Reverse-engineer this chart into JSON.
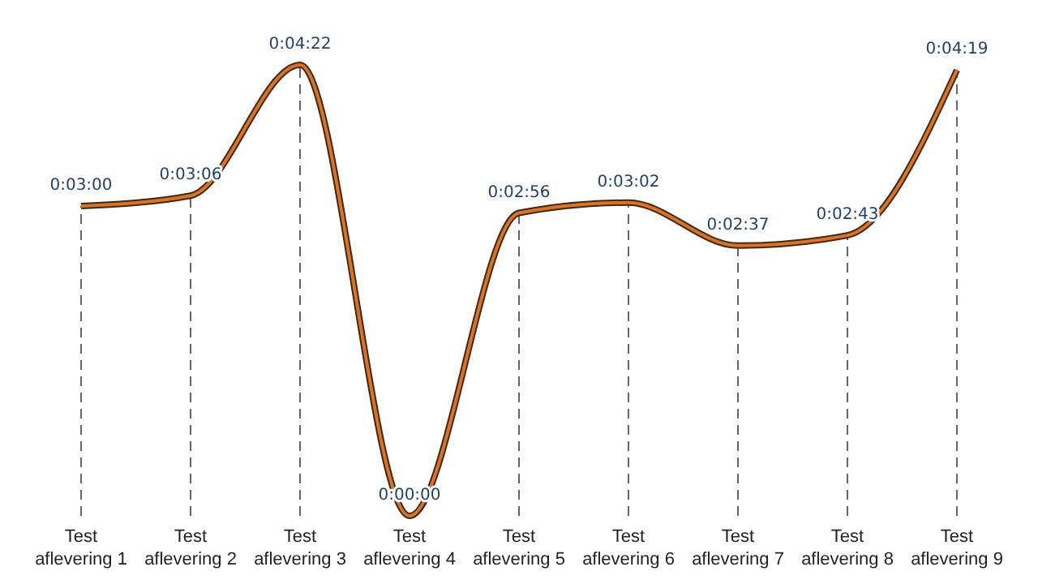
{
  "chart_data": {
    "type": "line",
    "categories": [
      "Test aflevering 1",
      "Test aflevering 2",
      "Test aflevering 3",
      "Test aflevering 4",
      "Test aflevering 5",
      "Test aflevering 6",
      "Test aflevering 7",
      "Test aflevering 8",
      "Test aflevering 9"
    ],
    "series": [
      {
        "color": "#e0711f",
        "values": [
          180,
          186,
          262,
          0,
          176,
          182,
          157,
          163,
          259
        ],
        "value_labels": [
          "0:03:00",
          "0:03:06",
          "0:04:22",
          "0:00:00",
          "0:02:56",
          "0:03:02",
          "0:02:37",
          "0:02:43",
          "0:04:19"
        ]
      }
    ],
    "grid": "x",
    "line_style": "solid",
    "marker": "none",
    "tick_labels": "x"
  }
}
